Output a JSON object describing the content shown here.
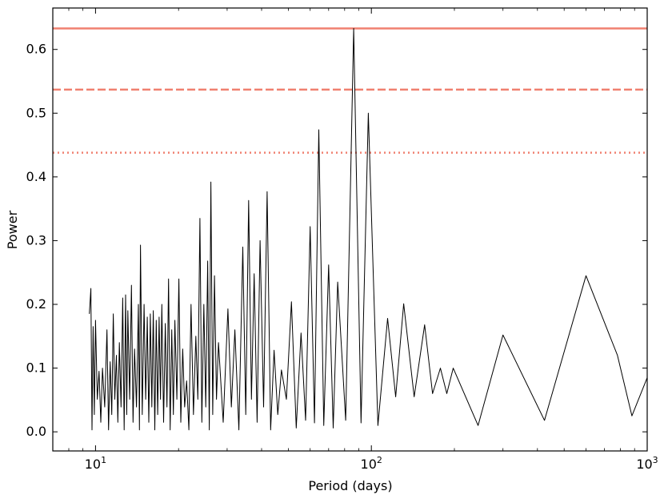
{
  "chart_data": {
    "type": "line",
    "xlabel": "Period (days)",
    "ylabel": "Power",
    "xscale": "log",
    "xlim": [
      7,
      1000
    ],
    "ylim": [
      -0.03,
      0.665
    ],
    "x_ticks": [
      {
        "value": 10,
        "base": "10",
        "exp": "1"
      },
      {
        "value": 100,
        "base": "10",
        "exp": "2"
      },
      {
        "value": 1000,
        "base": "10",
        "exp": "3"
      }
    ],
    "y_ticks": [
      {
        "value": 0.0,
        "label": "0.0"
      },
      {
        "value": 0.1,
        "label": "0.1"
      },
      {
        "value": 0.2,
        "label": "0.2"
      },
      {
        "value": 0.3,
        "label": "0.3"
      },
      {
        "value": 0.4,
        "label": "0.4"
      },
      {
        "value": 0.5,
        "label": "0.5"
      },
      {
        "value": 0.6,
        "label": "0.6"
      }
    ],
    "grid": false,
    "threshold_lines": [
      {
        "y": 0.633,
        "style": "solid",
        "color": "#f08070"
      },
      {
        "y": 0.537,
        "style": "dashed",
        "color": "#f08070"
      },
      {
        "y": 0.438,
        "style": "dotted",
        "color": "#f08070"
      }
    ],
    "series_color": "#000000",
    "peaks": [
      {
        "x": 9.62,
        "y": 0.225
      },
      {
        "x": 9.8,
        "y": 0.165
      },
      {
        "x": 10.0,
        "y": 0.175
      },
      {
        "x": 10.3,
        "y": 0.095
      },
      {
        "x": 10.6,
        "y": 0.1
      },
      {
        "x": 11.0,
        "y": 0.16
      },
      {
        "x": 11.3,
        "y": 0.11
      },
      {
        "x": 11.6,
        "y": 0.185
      },
      {
        "x": 11.9,
        "y": 0.12
      },
      {
        "x": 12.2,
        "y": 0.14
      },
      {
        "x": 12.55,
        "y": 0.21
      },
      {
        "x": 12.85,
        "y": 0.215
      },
      {
        "x": 13.1,
        "y": 0.19
      },
      {
        "x": 13.5,
        "y": 0.23
      },
      {
        "x": 13.85,
        "y": 0.13
      },
      {
        "x": 14.3,
        "y": 0.2
      },
      {
        "x": 14.55,
        "y": 0.293
      },
      {
        "x": 15.0,
        "y": 0.2
      },
      {
        "x": 15.4,
        "y": 0.18
      },
      {
        "x": 15.8,
        "y": 0.185
      },
      {
        "x": 16.2,
        "y": 0.19
      },
      {
        "x": 16.6,
        "y": 0.175
      },
      {
        "x": 17.0,
        "y": 0.18
      },
      {
        "x": 17.4,
        "y": 0.2
      },
      {
        "x": 17.9,
        "y": 0.17
      },
      {
        "x": 18.4,
        "y": 0.24
      },
      {
        "x": 18.9,
        "y": 0.16
      },
      {
        "x": 19.4,
        "y": 0.175
      },
      {
        "x": 20.05,
        "y": 0.24
      },
      {
        "x": 20.7,
        "y": 0.13
      },
      {
        "x": 21.4,
        "y": 0.08
      },
      {
        "x": 22.2,
        "y": 0.2
      },
      {
        "x": 23.1,
        "y": 0.15
      },
      {
        "x": 23.9,
        "y": 0.335
      },
      {
        "x": 24.7,
        "y": 0.2
      },
      {
        "x": 25.5,
        "y": 0.268
      },
      {
        "x": 26.2,
        "y": 0.392
      },
      {
        "x": 27.0,
        "y": 0.245
      },
      {
        "x": 27.9,
        "y": 0.14
      },
      {
        "x": 30.2,
        "y": 0.193
      },
      {
        "x": 32.0,
        "y": 0.16
      },
      {
        "x": 34.2,
        "y": 0.29
      },
      {
        "x": 35.9,
        "y": 0.363
      },
      {
        "x": 37.6,
        "y": 0.248
      },
      {
        "x": 39.5,
        "y": 0.3
      },
      {
        "x": 41.9,
        "y": 0.377
      },
      {
        "x": 44.4,
        "y": 0.128
      },
      {
        "x": 47.2,
        "y": 0.097
      },
      {
        "x": 51.3,
        "y": 0.204
      },
      {
        "x": 55.6,
        "y": 0.155
      },
      {
        "x": 60.0,
        "y": 0.322
      },
      {
        "x": 64.5,
        "y": 0.474
      },
      {
        "x": 70.0,
        "y": 0.262
      },
      {
        "x": 75.5,
        "y": 0.235
      },
      {
        "x": 86.3,
        "y": 0.633
      },
      {
        "x": 97.5,
        "y": 0.5
      },
      {
        "x": 114.5,
        "y": 0.178
      },
      {
        "x": 131.0,
        "y": 0.201
      },
      {
        "x": 156.0,
        "y": 0.168
      },
      {
        "x": 178.0,
        "y": 0.1
      },
      {
        "x": 198.0,
        "y": 0.1
      },
      {
        "x": 300.0,
        "y": 0.152
      },
      {
        "x": 600.0,
        "y": 0.245
      }
    ]
  }
}
